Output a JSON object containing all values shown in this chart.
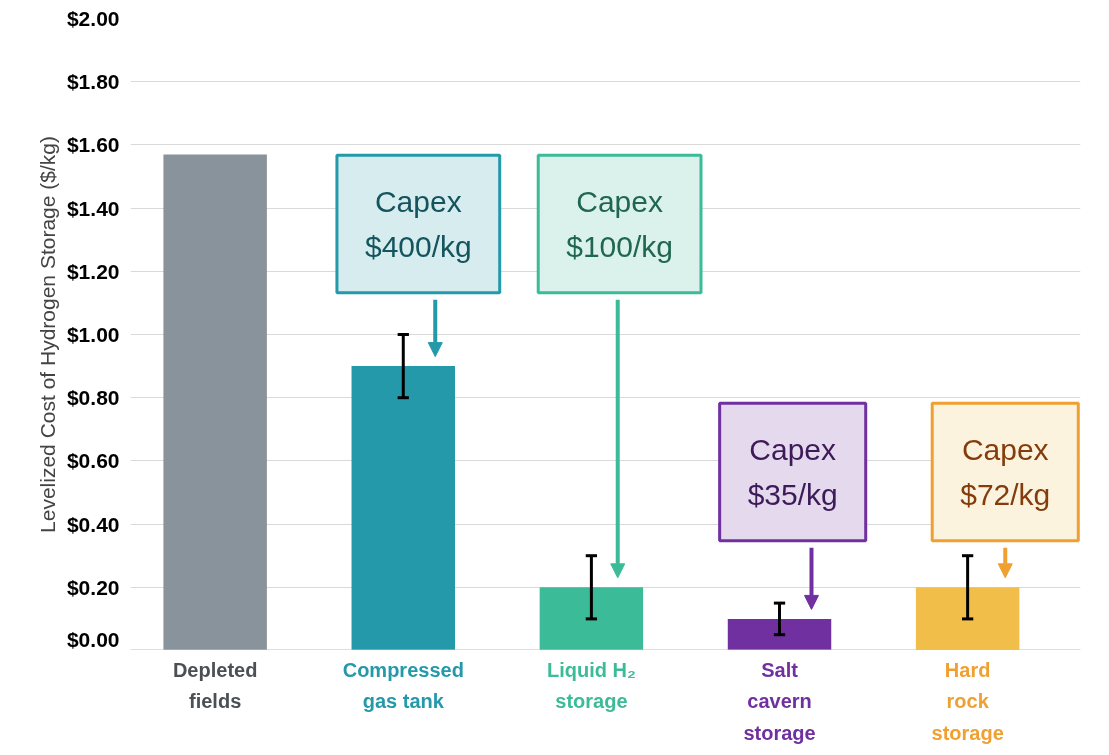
{
  "chart_data": {
    "type": "bar",
    "ylabel": "Levelized Cost of Hydrogen Storage ($/kg)",
    "categories": [
      "Depleted fields",
      "Compressed gas tank",
      "Liquid H₂ storage",
      "Salt cavern storage",
      "Hard rock storage"
    ],
    "values": [
      1.57,
      0.9,
      0.2,
      0.1,
      0.2
    ],
    "colors": [
      "#89939b",
      "#2399aa",
      "#3bbb98",
      "#7030a0",
      "#f2be4a"
    ],
    "errors": [
      null,
      [
        0.8,
        1.0
      ],
      [
        0.1,
        0.3
      ],
      [
        0.05,
        0.15
      ],
      [
        0.1,
        0.3
      ]
    ],
    "ylim": [
      0,
      2
    ],
    "yticks": [
      {
        "value": 0,
        "label": "$0.00"
      },
      {
        "value": 0.2,
        "label": "$0.20"
      },
      {
        "value": 0.4,
        "label": "$0.40"
      },
      {
        "value": 0.6,
        "label": "$0.60"
      },
      {
        "value": 0.8,
        "label": "$0.80"
      },
      {
        "value": 1.0,
        "label": "$1.00"
      },
      {
        "value": 1.2,
        "label": "$1.20"
      },
      {
        "value": 1.4,
        "label": "$1.40"
      },
      {
        "value": 1.6,
        "label": "$1.60"
      },
      {
        "value": 1.8,
        "label": "$1.80"
      },
      {
        "value": 2.0,
        "label": "$2.00"
      }
    ],
    "grid": "y",
    "annotations": [
      "Capex $400/kg",
      "Capex $100/kg",
      "Capex $35/kg",
      "Capex $72/kg"
    ]
  }
}
